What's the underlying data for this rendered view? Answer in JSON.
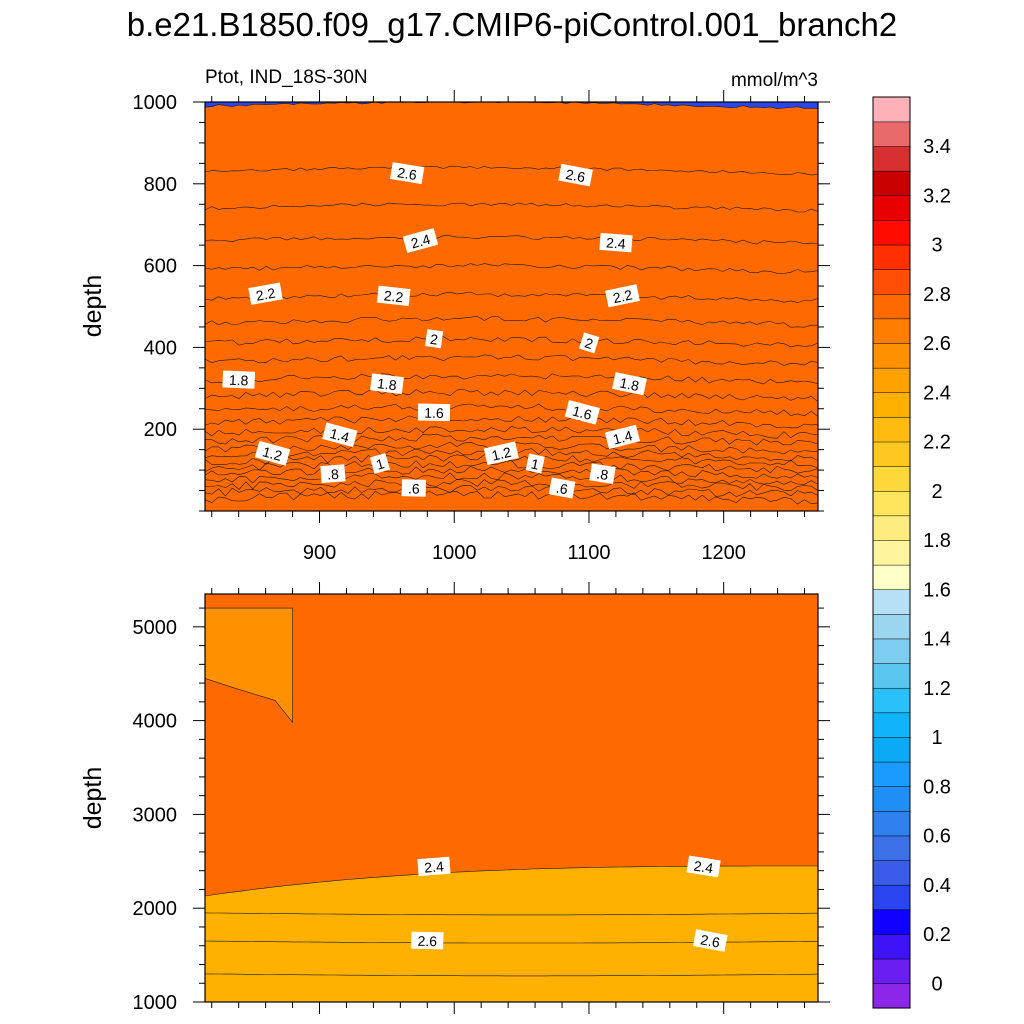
{
  "figure": {
    "title": "b.e21.B1850.f09_g17.CMIP6-piControl.001_branch2",
    "left_string": "Ptot, IND_18S-30N",
    "right_string": "mmol/m^3"
  },
  "chart_data": [
    {
      "type": "heatmap",
      "panel": "upper",
      "variable": "Ptot",
      "region": "IND_18S-30N",
      "units": "mmol/m^3",
      "xlabel": "",
      "ylabel": "depth",
      "xlim": [
        815,
        1270
      ],
      "ylim": [
        1000,
        0
      ],
      "x_ticks": [
        900,
        1000,
        1100,
        1200
      ],
      "y_ticks": [
        200,
        400,
        600,
        800,
        1000
      ],
      "contour_interval": 0.1,
      "isoline_depths": [
        {
          "level": 0.4,
          "depth": 30
        },
        {
          "level": 0.5,
          "depth": 45
        },
        {
          "level": 0.6,
          "depth": 60
        },
        {
          "level": 0.7,
          "depth": 75
        },
        {
          "level": 0.8,
          "depth": 90
        },
        {
          "level": 0.9,
          "depth": 105
        },
        {
          "level": 1.0,
          "depth": 120
        },
        {
          "level": 1.1,
          "depth": 135
        },
        {
          "level": 1.2,
          "depth": 150
        },
        {
          "level": 1.3,
          "depth": 170
        },
        {
          "level": 1.4,
          "depth": 190
        },
        {
          "level": 1.5,
          "depth": 215
        },
        {
          "level": 1.6,
          "depth": 245
        },
        {
          "level": 1.7,
          "depth": 280
        },
        {
          "level": 1.8,
          "depth": 320
        },
        {
          "level": 1.9,
          "depth": 365
        },
        {
          "level": 2.0,
          "depth": 410
        },
        {
          "level": 2.1,
          "depth": 460
        },
        {
          "level": 2.2,
          "depth": 520
        },
        {
          "level": 2.3,
          "depth": 590
        },
        {
          "level": 2.4,
          "depth": 660
        },
        {
          "level": 2.5,
          "depth": 740
        },
        {
          "level": 2.6,
          "depth": 830
        },
        {
          "level": 2.7,
          "depth": 990
        }
      ],
      "contour_labels": [
        {
          "text": ".6",
          "x": 970,
          "y": 55
        },
        {
          "text": ".6",
          "x": 1080,
          "y": 55
        },
        {
          "text": ".8",
          "x": 910,
          "y": 90
        },
        {
          "text": ".8",
          "x": 1110,
          "y": 90
        },
        {
          "text": "1",
          "x": 945,
          "y": 115
        },
        {
          "text": "1",
          "x": 1060,
          "y": 115
        },
        {
          "text": "1.2",
          "x": 865,
          "y": 140
        },
        {
          "text": "1.2",
          "x": 1035,
          "y": 140
        },
        {
          "text": "1.4",
          "x": 915,
          "y": 185
        },
        {
          "text": "1.4",
          "x": 1125,
          "y": 180
        },
        {
          "text": "1.6",
          "x": 985,
          "y": 240
        },
        {
          "text": "1.6",
          "x": 1095,
          "y": 240
        },
        {
          "text": "1.8",
          "x": 840,
          "y": 320
        },
        {
          "text": "1.8",
          "x": 950,
          "y": 310
        },
        {
          "text": "1.8",
          "x": 1130,
          "y": 310
        },
        {
          "text": "2",
          "x": 985,
          "y": 420
        },
        {
          "text": "2",
          "x": 1100,
          "y": 410
        },
        {
          "text": "2.2",
          "x": 860,
          "y": 530
        },
        {
          "text": "2.2",
          "x": 955,
          "y": 525
        },
        {
          "text": "2.2",
          "x": 1125,
          "y": 525
        },
        {
          "text": "2.4",
          "x": 975,
          "y": 660
        },
        {
          "text": "2.4",
          "x": 1120,
          "y": 655
        },
        {
          "text": "2.6",
          "x": 965,
          "y": 825
        },
        {
          "text": "2.6",
          "x": 1090,
          "y": 820
        }
      ]
    },
    {
      "type": "heatmap",
      "panel": "lower",
      "variable": "Ptot",
      "xlabel": "",
      "ylabel": "depth",
      "xlim": [
        815,
        1270
      ],
      "ylim": [
        5350,
        1000
      ],
      "x_ticks": [
        900,
        1000,
        1100,
        1200
      ],
      "y_ticks": [
        1000,
        2000,
        3000,
        4000,
        5000
      ],
      "isoline_depths": [
        {
          "level": 2.7,
          "depth": 1300
        },
        {
          "level": 2.6,
          "depth": 1650
        },
        {
          "level": 2.5,
          "depth": 1950
        },
        {
          "level": 2.4,
          "depth": 2450
        }
      ],
      "deep_patch": {
        "value": 2.5,
        "depth_range": [
          4450,
          5200
        ],
        "x_range": [
          815,
          880
        ]
      },
      "contour_labels": [
        {
          "text": "2.6",
          "x": 980,
          "y": 1650
        },
        {
          "text": "2.6",
          "x": 1190,
          "y": 1650
        },
        {
          "text": "2.4",
          "x": 985,
          "y": 2440
        },
        {
          "text": "2.4",
          "x": 1185,
          "y": 2440
        }
      ]
    }
  ],
  "colorbar": {
    "levels": [
      0,
      0.1,
      0.2,
      0.3,
      0.4,
      0.5,
      0.6,
      0.7,
      0.8,
      0.9,
      1,
      1.1,
      1.2,
      1.3,
      1.4,
      1.5,
      1.6,
      1.7,
      1.8,
      1.9,
      2,
      2.1,
      2.2,
      2.3,
      2.4,
      2.5,
      2.6,
      2.7,
      2.8,
      2.9,
      3,
      3.1,
      3.2,
      3.3,
      3.4,
      3.5
    ],
    "labels": [
      "0",
      "0.2",
      "0.4",
      "0.6",
      "0.8",
      "1",
      "1.2",
      "1.4",
      "1.6",
      "1.8",
      "2",
      "2.2",
      "2.4",
      "2.6",
      "2.8",
      "3",
      "3.2",
      "3.4"
    ],
    "colors": [
      "#8c26e8",
      "#6a1ef0",
      "#3c14f5",
      "#1000ff",
      "#2a45f0",
      "#3a5ce8",
      "#3d6fe6",
      "#3080ee",
      "#1f8ff5",
      "#1a9cff",
      "#0aaaf5",
      "#10b4fa",
      "#2ac0fa",
      "#5ac6f0",
      "#7ccdf0",
      "#9cd5ee",
      "#b6e0f5",
      "#ffffc8",
      "#fff59e",
      "#fdec80",
      "#fde45a",
      "#fdd83a",
      "#fec820",
      "#ffbc10",
      "#ffb000",
      "#ffa200",
      "#ff9000",
      "#ff7d00",
      "#ff6a00",
      "#ff4e06",
      "#ff3000",
      "#ff0b00",
      "#e80000",
      "#c80000",
      "#d83030",
      "#e86a6a",
      "#fcb0b8"
    ]
  }
}
